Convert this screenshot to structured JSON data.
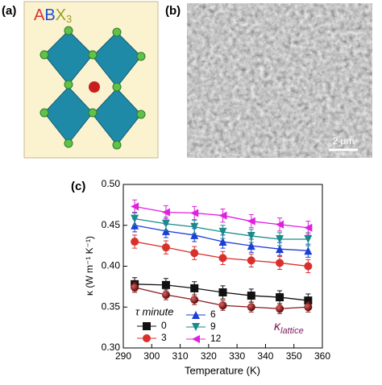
{
  "panels": {
    "a": "(a)",
    "b": "(b)",
    "c": "(c)"
  },
  "structure_label": {
    "A": "A",
    "B": "B",
    "X": "X",
    "sub": "3"
  },
  "scale_bar": "2 μm",
  "chart_data": {
    "type": "line",
    "xlabel": "Temperature (K)",
    "ylabel": "κ (W m⁻¹ K⁻¹)",
    "legend_title": "τ minute",
    "annotation": {
      "symbol": "κ",
      "subscript": "lattice"
    },
    "x": [
      294,
      305,
      315,
      325,
      335,
      345,
      355
    ],
    "xlim": [
      290,
      360
    ],
    "xticks": [
      290,
      300,
      310,
      320,
      330,
      340,
      350,
      360
    ],
    "ylim": [
      0.3,
      0.5
    ],
    "yticks": [
      {
        "value": 0.3,
        "label": "0.30"
      },
      0.35,
      {
        "value": 0.4,
        "label": "0.40"
      },
      0.45,
      {
        "value": 0.5,
        "label": "0.50"
      }
    ],
    "series": [
      {
        "name": "0",
        "color": "#111111",
        "marker": "square",
        "values": [
          0.378,
          0.377,
          0.373,
          0.368,
          0.364,
          0.362,
          0.358
        ],
        "errors": [
          0.008,
          0.008,
          0.008,
          0.008,
          0.008,
          0.008,
          0.008
        ]
      },
      {
        "name": "3",
        "color": "#d9302b",
        "marker": "circle",
        "values": [
          0.43,
          0.423,
          0.416,
          0.41,
          0.407,
          0.404,
          0.4
        ],
        "errors": [
          0.008,
          0.008,
          0.008,
          0.008,
          0.008,
          0.008,
          0.008
        ]
      },
      {
        "name": "6",
        "color": "#1b3fd6",
        "marker": "up",
        "values": [
          0.45,
          0.443,
          0.438,
          0.43,
          0.425,
          0.421,
          0.419
        ],
        "errors": [
          0.008,
          0.008,
          0.008,
          0.008,
          0.008,
          0.008,
          0.008
        ]
      },
      {
        "name": "9",
        "color": "#1a8a8a",
        "marker": "down",
        "values": [
          0.458,
          0.452,
          0.448,
          0.442,
          0.437,
          0.433,
          0.433
        ],
        "errors": [
          0.008,
          0.008,
          0.008,
          0.008,
          0.008,
          0.008,
          0.008
        ]
      },
      {
        "name": "12",
        "color": "#e020e0",
        "marker": "left",
        "values": [
          0.473,
          0.466,
          0.465,
          0.462,
          0.455,
          0.451,
          0.447
        ],
        "errors": [
          0.008,
          0.008,
          0.008,
          0.008,
          0.008,
          0.008,
          0.008
        ]
      },
      {
        "color": "#8b1a1a",
        "marker": "sphere",
        "values": [
          0.374,
          0.365,
          0.359,
          0.352,
          0.35,
          0.348,
          0.35
        ],
        "errors": [
          0.006,
          0.006,
          0.006,
          0.006,
          0.006,
          0.006,
          0.006
        ]
      }
    ]
  }
}
